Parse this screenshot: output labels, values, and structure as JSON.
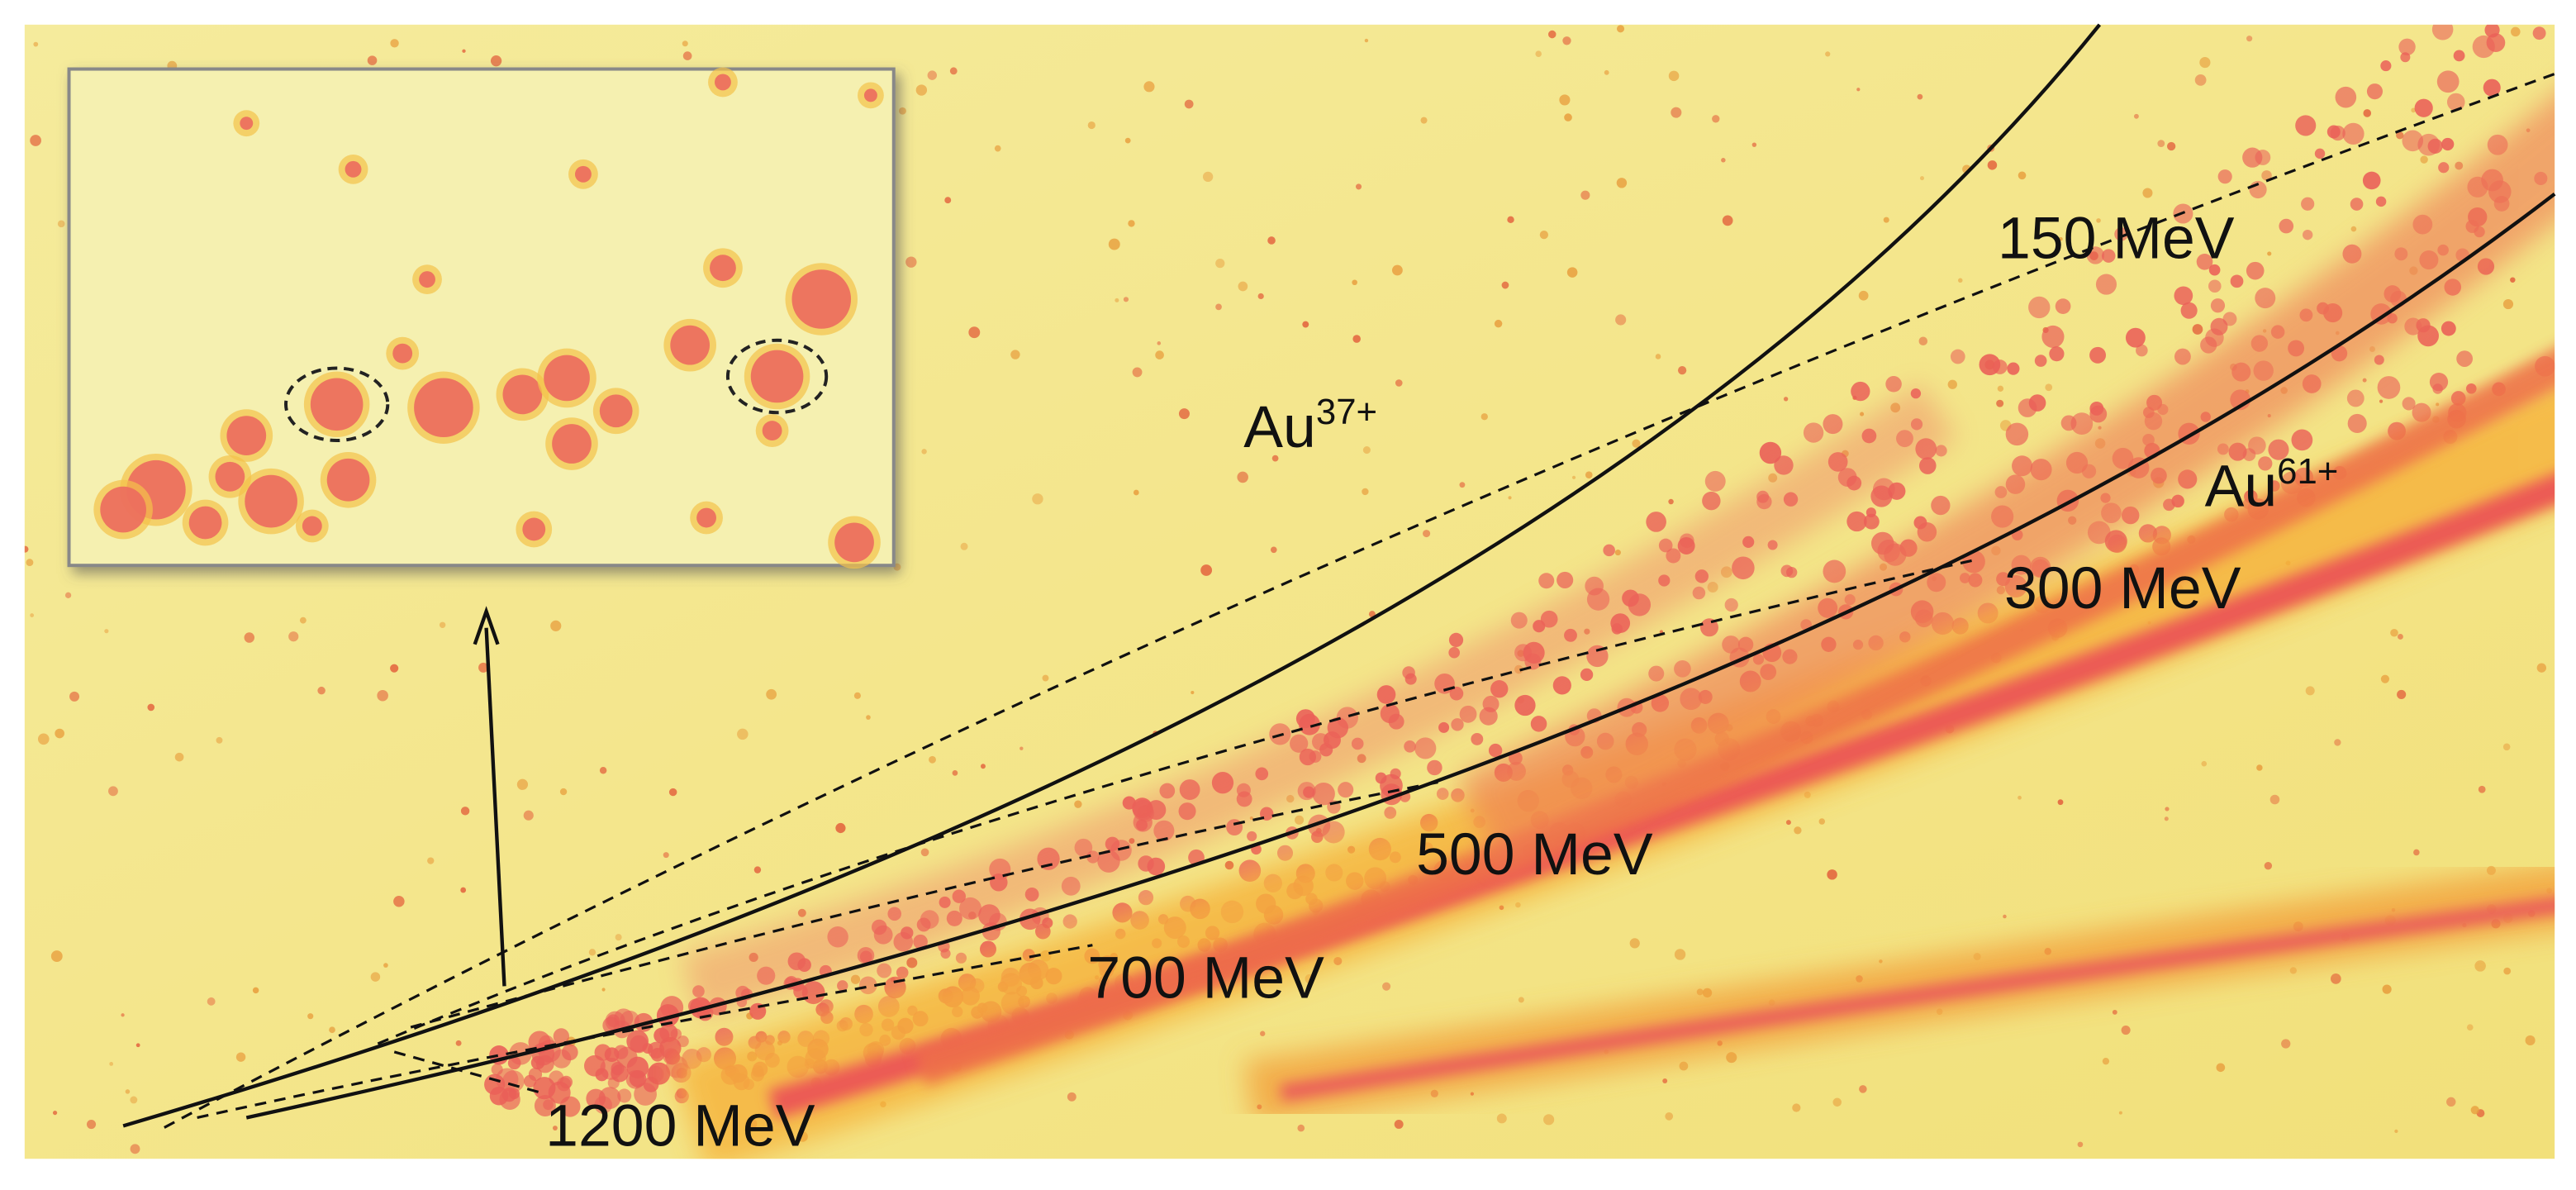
{
  "labels": {
    "charge_states": [
      {
        "base": "Au",
        "superscript": "37+"
      },
      {
        "base": "Au",
        "superscript": "61+"
      }
    ],
    "energies": [
      "150 MeV",
      "300 MeV",
      "500 MeV",
      "700 MeV",
      "1200 MeV"
    ]
  }
}
